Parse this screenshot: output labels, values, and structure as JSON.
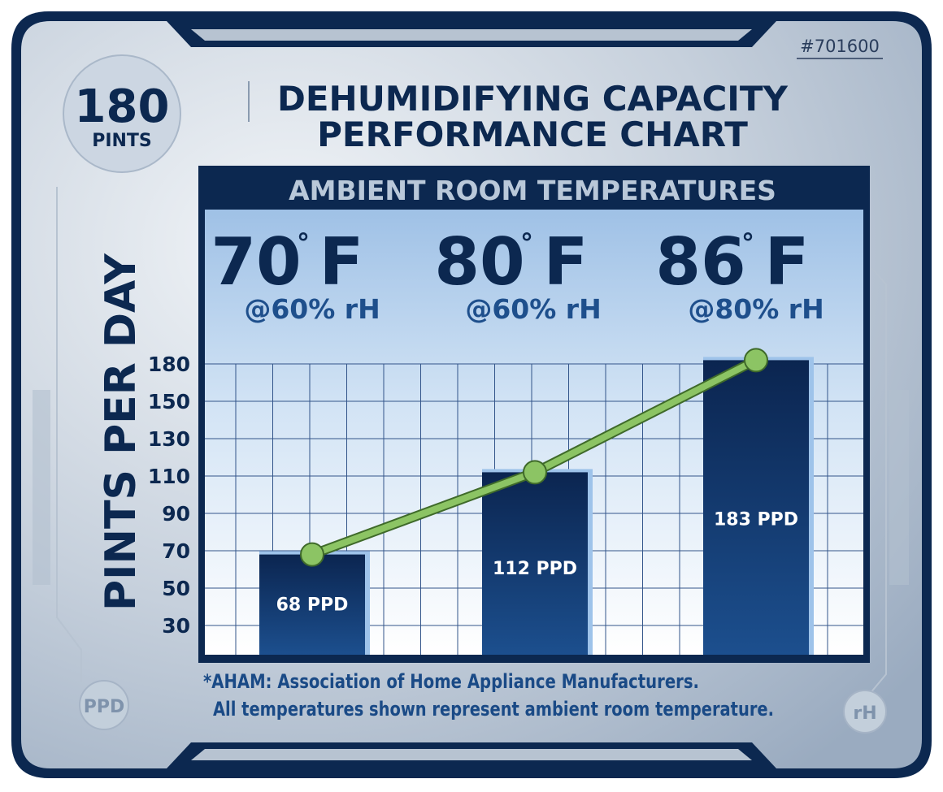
{
  "sku": "#701600",
  "badge": {
    "number": "180",
    "unit": "PINTS"
  },
  "title": {
    "line1": "DEHUMIDIFYING CAPACITY",
    "line2": "PERFORMANCE CHART"
  },
  "panel_header": "AMBIENT ROOM TEMPERATURES",
  "conditions": [
    {
      "temp": "70",
      "unit": "F",
      "rh": "@60% rH"
    },
    {
      "temp": "80",
      "unit": "F",
      "rh": "@60% rH"
    },
    {
      "temp": "86",
      "unit": "F",
      "rh": "@80% rH"
    }
  ],
  "footnote": {
    "line1": "*AHAM: Association of Home Appliance Manufacturers.",
    "line2": "All temperatures shown represent ambient room temperature."
  },
  "corner_badges": {
    "left": "PPD",
    "right": "rH"
  },
  "colors": {
    "navy": "#0c2850",
    "bar": "#12386a",
    "line": "#8cc464",
    "frame": "#a9b7c7"
  },
  "chart_data": {
    "type": "bar",
    "categories": [
      "70° F @60% rH",
      "80° F @60% rH",
      "86° F @80% rH"
    ],
    "values": [
      68,
      112,
      183
    ],
    "value_labels": [
      "68 PPD",
      "112 PPD",
      "183 PPD"
    ],
    "overlay_line": true,
    "ylabel": "PINTS PER DAY",
    "yticks": [
      30,
      50,
      70,
      90,
      110,
      130,
      150,
      180
    ],
    "grid": true
  }
}
